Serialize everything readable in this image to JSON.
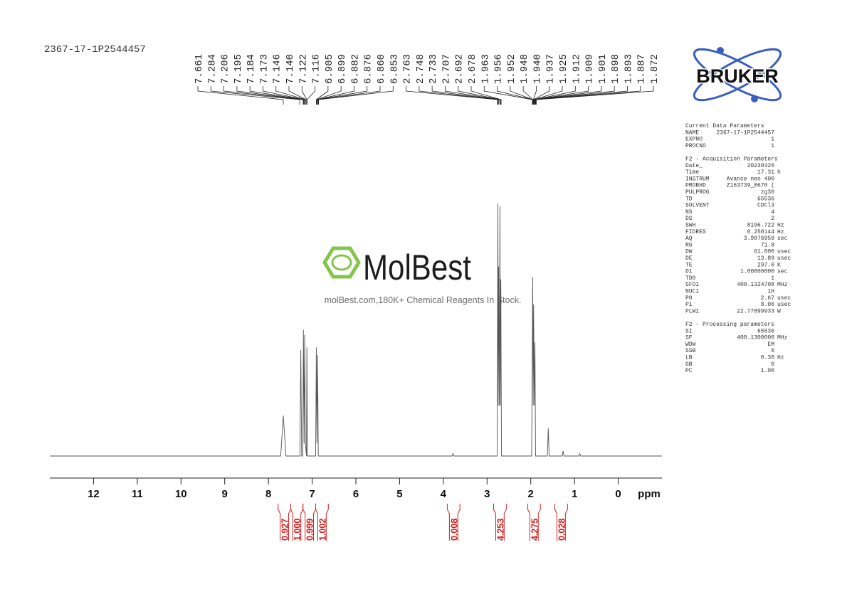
{
  "sample_id": "2367-17-1P2544457",
  "logo": "BRUKER",
  "watermark": {
    "brand": "MolBest",
    "tagline": "molBest.com,180K+ Chemical Reagents In Stock."
  },
  "chart_data": {
    "type": "nmr",
    "x_label": "ppm",
    "xlim": [
      13,
      -1
    ],
    "xticks": [
      12,
      11,
      10,
      9,
      8,
      7,
      6,
      5,
      4,
      3,
      2,
      1,
      0
    ],
    "ylim": [
      0,
      100
    ],
    "color": "#555555",
    "x": [
      13,
      7.72,
      7.66,
      7.6,
      7.28,
      7.26,
      7.24,
      7.215,
      7.2,
      7.185,
      7.17,
      7.155,
      7.13,
      7.12,
      7.11,
      6.92,
      6.905,
      6.89,
      6.875,
      6.86,
      3.8,
      3.78,
      3.76,
      2.77,
      2.752,
      2.745,
      2.735,
      2.72,
      2.705,
      2.695,
      2.685,
      2.67,
      1.98,
      1.955,
      1.945,
      1.935,
      1.92,
      1.905,
      1.89,
      1.62,
      1.6,
      1.58,
      1.28,
      1.26,
      1.24,
      0.9,
      0.88,
      0.86,
      -1
    ],
    "values": [
      0,
      0,
      16,
      0,
      0,
      42,
      0,
      0,
      50,
      5,
      48,
      5,
      0,
      43,
      0,
      0,
      43,
      5,
      40,
      0,
      0,
      1,
      0,
      0,
      100,
      20,
      75,
      20,
      99,
      20,
      70,
      0,
      0,
      71,
      20,
      60,
      20,
      45,
      0,
      0,
      11,
      0,
      0,
      2,
      0,
      0,
      1,
      0,
      0
    ],
    "peaks": [
      7.661,
      7.284,
      7.206,
      7.195,
      7.184,
      7.173,
      7.146,
      {
        "value": 7.14,
        "label": "7.140"
      },
      7.122,
      7.116,
      6.905,
      6.899,
      6.882,
      6.876,
      {
        "value": 6.86,
        "label": "6.860"
      },
      6.853,
      2.763,
      2.748,
      2.733,
      2.707,
      2.692,
      2.678,
      1.963,
      1.956,
      1.952,
      1.948,
      {
        "value": 1.94,
        "label": "1.940"
      },
      1.937,
      1.925,
      1.912,
      1.909,
      1.901,
      1.898,
      1.893,
      1.887,
      1.872
    ],
    "peak_color": "#222222",
    "integral_color": "#d42020",
    "integrals": {
      "ranges": [
        [
          7.78,
          7.49
        ],
        [
          7.49,
          7.21
        ],
        [
          7.21,
          6.92
        ],
        [
          6.92,
          6.63
        ],
        [
          3.91,
          3.62
        ],
        [
          2.85,
          2.56
        ],
        [
          2.07,
          1.78
        ],
        [
          1.45,
          1.16
        ]
      ],
      "values": [
        0.927,
        1,
        0.999,
        1.002,
        0.008,
        4.253,
        4.275,
        0.028
      ],
      "value_labels": [
        "0.927",
        "1.000",
        "0.999",
        "1.002",
        "0.008",
        "4.253",
        "4.275",
        "0.028"
      ]
    }
  },
  "parameters": [
    {
      "title": "Current Data Parameters",
      "rows": [
        [
          "NAME",
          "2367-17-1P2544457",
          ""
        ],
        [
          "EXPNO",
          "1",
          ""
        ],
        [
          "PROCNO",
          "1",
          ""
        ]
      ]
    },
    {
      "title": "F2 - Acquisition Parameters",
      "rows": [
        [
          "Date_",
          "20230320",
          ""
        ],
        [
          "Time",
          "17.31",
          "h"
        ],
        [
          "INSTRUM",
          "Avance neo 400",
          ""
        ],
        [
          "PROBHD",
          "Z163739_0670 (",
          ""
        ],
        [
          "PULPROG",
          "zg30",
          ""
        ],
        [
          "TD",
          "65536",
          ""
        ],
        [
          "SOLVENT",
          "CDCl3",
          ""
        ],
        [
          "NS",
          "4",
          ""
        ],
        [
          "DS",
          "2",
          ""
        ],
        [
          "SWH",
          "8196.722",
          "Hz"
        ],
        [
          "FIDRES",
          "0.250144",
          "Hz"
        ],
        [
          "AQ",
          "3.9976959",
          "sec"
        ],
        [
          "RG",
          "71.8",
          ""
        ],
        [
          "DW",
          "61.000",
          "usec"
        ],
        [
          "DE",
          "13.89",
          "usec"
        ],
        [
          "TE",
          "297.0",
          "K"
        ],
        [
          "D1",
          "1.00000000",
          "sec"
        ],
        [
          "TD0",
          "1",
          ""
        ],
        [
          "SFO1",
          "400.1324708",
          "MHz"
        ],
        [
          "NUC1",
          "1H",
          ""
        ],
        [
          "P0",
          "2.67",
          "usec"
        ],
        [
          "P1",
          "8.00",
          "usec"
        ],
        [
          "PLW1",
          "22.77899933",
          "W"
        ]
      ]
    },
    {
      "title": "F2 - Processing parameters",
      "rows": [
        [
          "SI",
          "65536",
          ""
        ],
        [
          "SF",
          "400.1300000",
          "MHz"
        ],
        [
          "WDW",
          "EM",
          ""
        ],
        [
          "SSB",
          "0",
          ""
        ],
        [
          "LB",
          "0.30",
          "Hz"
        ],
        [
          "GB",
          "0",
          ""
        ],
        [
          "PC",
          "1.00",
          ""
        ]
      ]
    }
  ]
}
